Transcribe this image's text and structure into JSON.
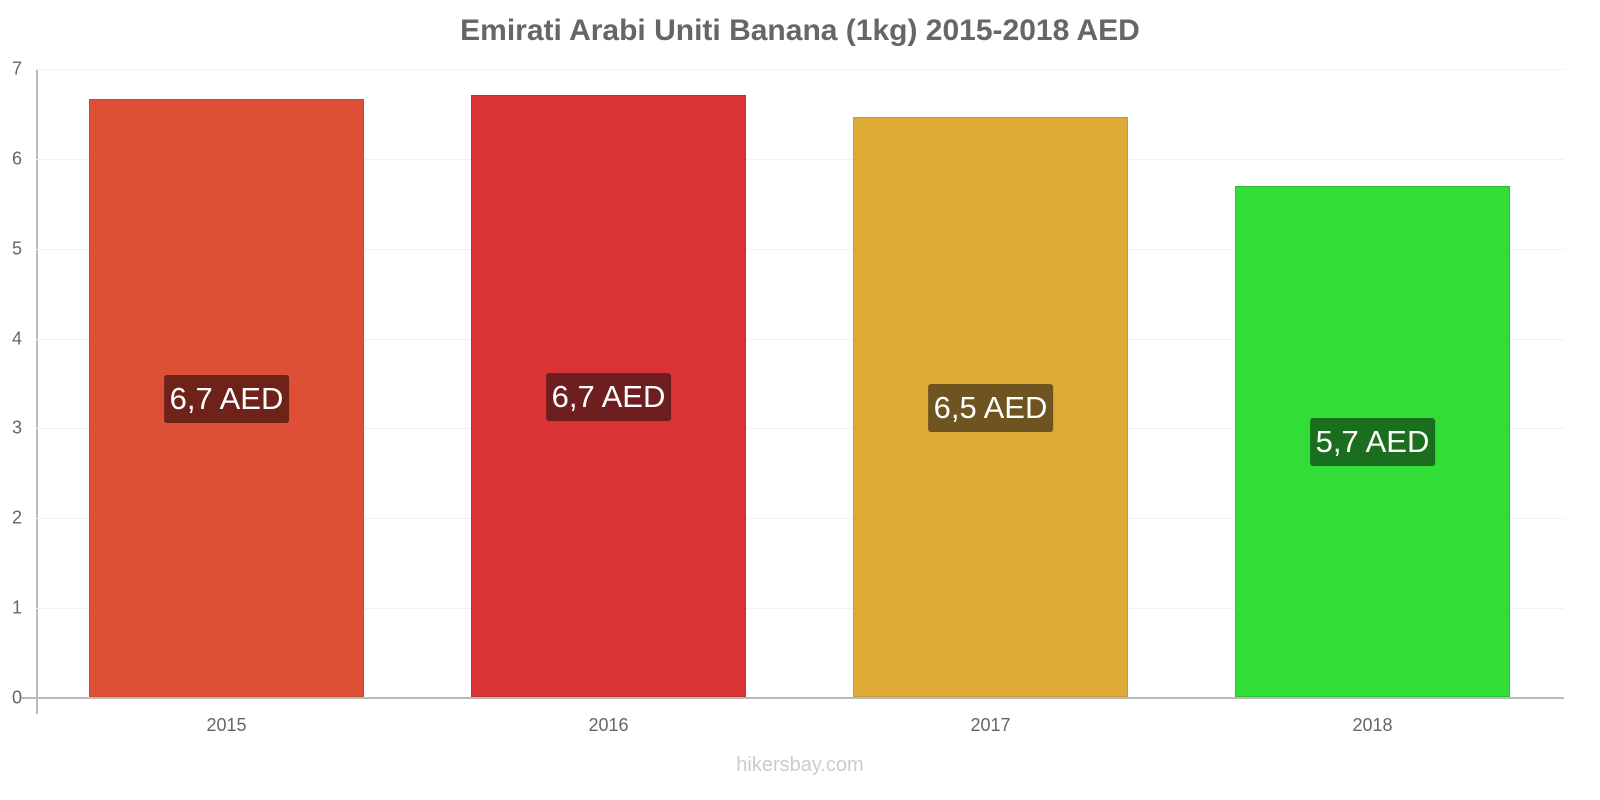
{
  "title": "Emirati Arabi Uniti Banana (1kg) 2015-2018 AED",
  "watermark": "hikersbay.com",
  "y_ticks": [
    "0",
    "1",
    "2",
    "3",
    "4",
    "5",
    "6",
    "7"
  ],
  "bars": [
    {
      "year": "2015",
      "value": 6.66,
      "label": "6,7 AED",
      "color": "#dd5035",
      "border": "#c94a30",
      "label_bg": "#6e2219"
    },
    {
      "year": "2016",
      "value": 6.7,
      "label": "6,7 AED",
      "color": "#db3436",
      "border": "#c42f30",
      "label_bg": "#6e1e1e"
    },
    {
      "year": "2017",
      "value": 6.46,
      "label": "6,5 AED",
      "color": "#dcaa35",
      "border": "#c9983a",
      "label_bg": "#6e5420"
    },
    {
      "year": "2018",
      "value": 5.69,
      "label": "5,7 AED",
      "color": "#33dd38",
      "border": "#2cc030",
      "label_bg": "#1a6e1d"
    }
  ],
  "chart_data": {
    "type": "bar",
    "title": "Emirati Arabi Uniti Banana (1kg) 2015-2018 AED",
    "categories": [
      "2015",
      "2016",
      "2017",
      "2018"
    ],
    "values": [
      6.66,
      6.7,
      6.46,
      5.69
    ],
    "data_labels": [
      "6,7 AED",
      "6,7 AED",
      "6,5 AED",
      "5,7 AED"
    ],
    "xlabel": "",
    "ylabel": "",
    "ylim": [
      0,
      7
    ],
    "y_ticks": [
      0,
      1,
      2,
      3,
      4,
      5,
      6,
      7
    ],
    "grid": true,
    "legend": "none",
    "colors": [
      "#dd5035",
      "#db3436",
      "#dcaa35",
      "#33dd38"
    ]
  }
}
